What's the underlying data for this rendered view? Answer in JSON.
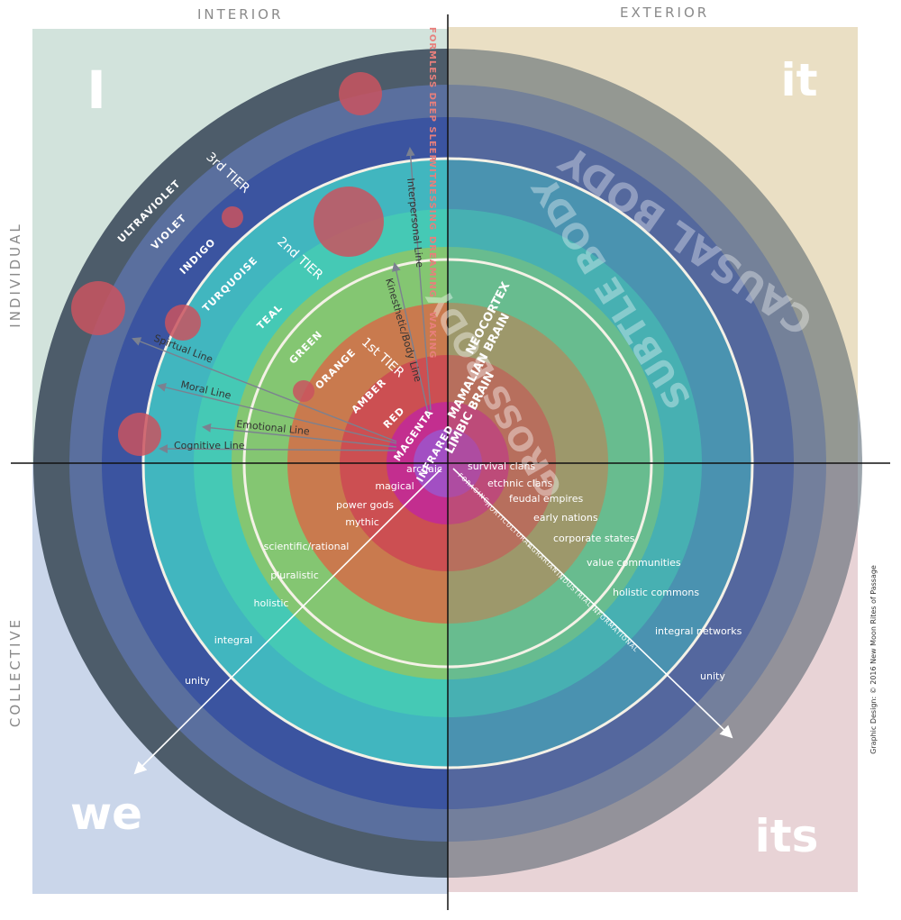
{
  "quadrant_headers": {
    "interior": "INTERIOR",
    "exterior": "EXTERIOR",
    "individual": "INDIVIDUAL",
    "collective": "COLLECTIVE"
  },
  "quadrant_labels": {
    "ul": "I",
    "ur": "it",
    "ll": "we",
    "lr": "its"
  },
  "colors": {
    "ul_bg": "#d2e3dc",
    "ur_bg": "#eadfc4",
    "ll_bg": "#cad6ea",
    "lr_bg": "#e8d3d6",
    "rings_left": [
      "#4d5c6a",
      "#5a6f9e",
      "#3b54a0",
      "#41b6bf",
      "#45c9b5",
      "#84c672",
      "#c97a4e",
      "#cc4f52",
      "#c32e8f",
      "#a24fc3"
    ],
    "rings_right_alpha": 0.55,
    "dot": "#c9545f",
    "arrow": "#7b8190",
    "states_text": "#e87f7c"
  },
  "ul": {
    "bands": [
      "ULTRAVIOLET",
      "VIOLET",
      "INDIGO",
      "TURQUOISE",
      "TEAL",
      "GREEN",
      "ORANGE",
      "AMBER",
      "RED",
      "MAGENTA",
      "INFRARED"
    ],
    "tiers": [
      "3rd TIER",
      "2nd TIER",
      "1st TIER"
    ],
    "lines": [
      "Interpersonal Line",
      "Kinesthetic/Body Line",
      "Spirtual Line",
      "Moral Line",
      "Emotional Line",
      "Cognitive Line"
    ],
    "states": [
      "FORMLESS DEEP SLEEP",
      "WITNESSING",
      "DREAMING",
      "WAKING"
    ]
  },
  "ur": {
    "bodies": [
      "CAUSAL BODY",
      "SUBTLE BODY",
      "GROSS BODY"
    ],
    "brain": [
      "NEOCORTEX",
      "MAMALIAN BRAIN",
      "LIMBIC BRAIN"
    ]
  },
  "ll": {
    "worldviews": [
      "archaic",
      "magical",
      "power gods",
      "mythic",
      "scientific/rational",
      "pluralistic",
      "holistic",
      "integral",
      "unity"
    ]
  },
  "lr": {
    "systems": [
      "survival clans",
      "etchnic clans",
      "feudal empires",
      "early nations",
      "corporate states",
      "value communities",
      "holistic commons",
      "integral networks",
      "unity"
    ],
    "modes": [
      "FORAGING",
      "HORTICULTURAL",
      "AGRARIAN",
      "INDUSTRIAL",
      "INFORMATIONAL"
    ]
  },
  "credit": "Graphic Design: © 2016 New Moon Rites of Passage"
}
